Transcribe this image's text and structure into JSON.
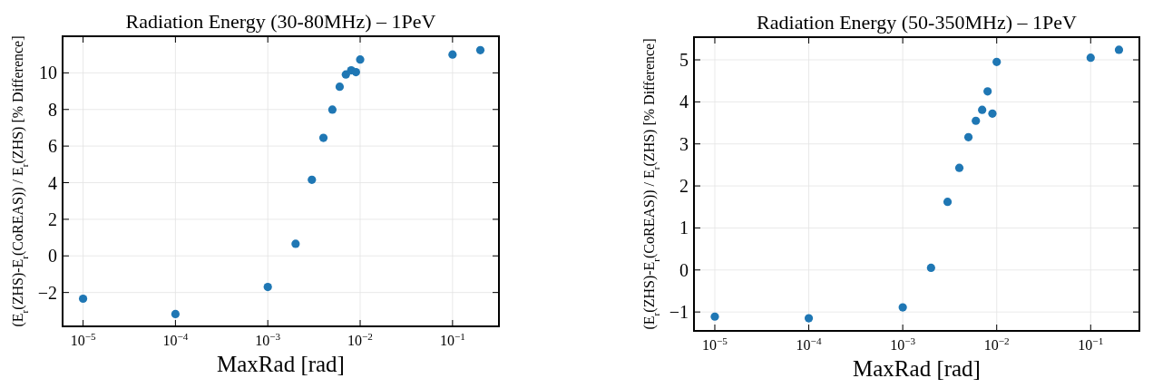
{
  "chart_data": [
    {
      "type": "scatter",
      "title": "Radiation Energy (30-80MHz) – 1PeV",
      "xlabel": "MaxRad [rad]",
      "ylabel": "(E$_{r}$(ZHS)-E$_{r}$(CoREAS)) / E$_{r}$(ZHS) [% Difference]",
      "log": "x",
      "grid": true,
      "marker": "circle",
      "xlim": [
        6e-06,
        0.318
      ],
      "xticks": [
        {
          "value": 1e-05,
          "label": "10$^{−5}$"
        },
        {
          "value": 0.0001,
          "label": "10$^{−4}$"
        },
        {
          "value": 0.001,
          "label": "10$^{−3}$"
        },
        {
          "value": 0.01,
          "label": "10$^{−2}$"
        },
        {
          "value": 0.1,
          "label": "10$^{−1}$"
        }
      ],
      "ylim": [
        -3.85,
        12
      ],
      "yticks": [
        {
          "value": -2,
          "label": "−2"
        },
        0,
        2,
        4,
        6,
        8,
        10
      ],
      "series": [
        {
          "color": "#1f77b4",
          "x": [
            1e-05,
            0.0001,
            0.001,
            0.002,
            0.003,
            0.004,
            0.005,
            0.006,
            0.007,
            0.008,
            0.009,
            0.01,
            0.1,
            0.2
          ],
          "values": [
            -2.34,
            -3.18,
            -1.7,
            0.66,
            4.16,
            6.45,
            7.99,
            9.24,
            9.91,
            10.14,
            10.04,
            10.73,
            11.0,
            11.24
          ]
        }
      ]
    },
    {
      "type": "scatter",
      "title": "Radiation Energy (50-350MHz) – 1PeV",
      "xlabel": "MaxRad [rad]",
      "ylabel": "(E$_{r}$(ZHS)-E$_{r}$(CoREAS)) / E$_{r}$(ZHS) [% Difference]",
      "log": "x",
      "grid": true,
      "marker": "circle",
      "xlim": [
        6e-06,
        0.33
      ],
      "xticks": [
        {
          "value": 1e-05,
          "label": "10$^{−5}$"
        },
        {
          "value": 0.0001,
          "label": "10$^{−4}$"
        },
        {
          "value": 0.001,
          "label": "10$^{−3}$"
        },
        {
          "value": 0.01,
          "label": "10$^{−2}$"
        },
        {
          "value": 0.1,
          "label": "10$^{−1}$"
        }
      ],
      "ylim": [
        -1.45,
        5.54
      ],
      "yticks": [
        {
          "value": -1,
          "label": "−1"
        },
        0,
        1,
        2,
        3,
        4,
        5
      ],
      "series": [
        {
          "color": "#1f77b4",
          "x": [
            1e-05,
            0.0001,
            0.001,
            0.002,
            0.003,
            0.004,
            0.005,
            0.006,
            0.007,
            0.008,
            0.009,
            0.01,
            0.1,
            0.2
          ],
          "values": [
            -1.11,
            -1.15,
            -0.89,
            0.05,
            1.62,
            2.43,
            3.16,
            3.55,
            3.81,
            4.25,
            3.72,
            4.95,
            5.05,
            5.24
          ]
        }
      ]
    }
  ]
}
